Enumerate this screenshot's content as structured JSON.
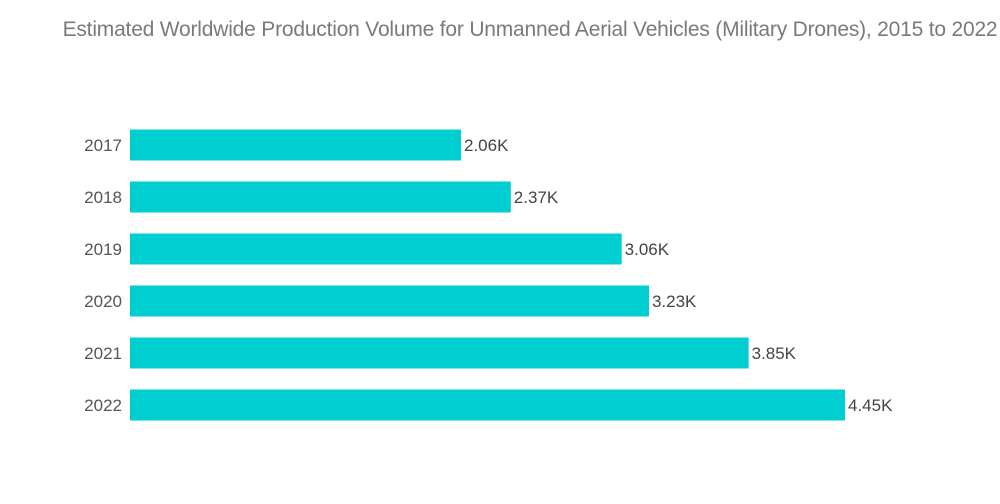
{
  "chart_data": {
    "type": "bar",
    "orientation": "horizontal",
    "title": "Estimated Worldwide Production Volume for Unmanned Aerial Vehicles (Military Drones), 2015 to 2022",
    "categories": [
      "2017",
      "2018",
      "2019",
      "2020",
      "2021",
      "2022"
    ],
    "values": [
      2.06,
      2.37,
      3.06,
      3.23,
      3.85,
      4.45
    ],
    "data_labels": [
      "2.06K",
      "2.37K",
      "3.06K",
      "3.23K",
      "3.85K",
      "4.45K"
    ],
    "unit": "thousand units",
    "xlabel": "",
    "ylabel": "",
    "xlim": [
      0,
      4.45
    ],
    "grid": false,
    "legend": "none",
    "bar_color": "#00ced1"
  }
}
